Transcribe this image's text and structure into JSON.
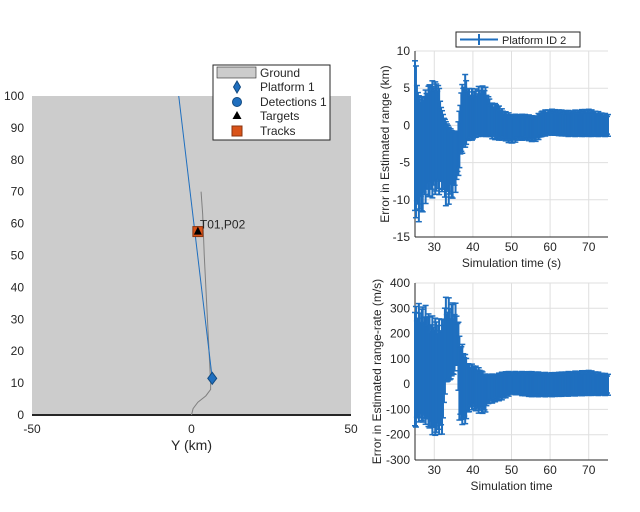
{
  "colors": {
    "ground": "#cccccc",
    "platform": "#1f6fbf",
    "track": "#d95319",
    "errorbar": "#1f6fbf",
    "truth": "#808080"
  },
  "chart_data": [
    {
      "type": "scatter",
      "title": "",
      "xlabel": "Y (km)",
      "ylabel": "",
      "xlim": [
        -50,
        50
      ],
      "ylim": [
        0,
        100
      ],
      "xticks": [
        "-50",
        "0",
        "50"
      ],
      "yticks": [
        "0",
        "10",
        "20",
        "30",
        "40",
        "50",
        "60",
        "70",
        "80",
        "90",
        "100"
      ],
      "legend": {
        "placement": "top-right",
        "entries": [
          "Ground",
          "Platform 1",
          "Detections 1",
          "Targets",
          "Tracks"
        ]
      },
      "platform_trajectory": {
        "x": [
          -4,
          6.5
        ],
        "y": [
          100,
          11.5
        ]
      },
      "platform_position": {
        "x": 6.5,
        "y": 11.5
      },
      "target_truth": {
        "x": [
          0,
          0.5,
          2,
          4.5,
          6,
          6,
          5,
          4,
          3.5,
          3
        ],
        "y": [
          0,
          2,
          4,
          6,
          8,
          10,
          30,
          50,
          63,
          70
        ]
      },
      "target_position": {
        "x": 2,
        "y": 57.5
      },
      "track_position": {
        "x": 2,
        "y": 57.5
      },
      "track_label": "T01,P02"
    },
    {
      "type": "errorbar",
      "xlabel": "Simulation time (s)",
      "ylabel": "Error in Estimated range (km)",
      "xlim": [
        25,
        75
      ],
      "ylim": [
        -15,
        10
      ],
      "xticks": [
        "30",
        "40",
        "50",
        "60",
        "70"
      ],
      "yticks": [
        "-15",
        "-10",
        "-5",
        "0",
        "5",
        "10"
      ],
      "legend": {
        "placement": "top",
        "entries": [
          "Platform ID 2"
        ]
      },
      "t": [
        25,
        26,
        27,
        28,
        29,
        30,
        31,
        32,
        33,
        34,
        35,
        36,
        37,
        38,
        39,
        40,
        41,
        42,
        43,
        44,
        45,
        46,
        48,
        50,
        52,
        54,
        56,
        58,
        60,
        65,
        70,
        75
      ],
      "upper": [
        9.5,
        4,
        4,
        5,
        6,
        6,
        6,
        2,
        0.5,
        -0.5,
        -1,
        -1,
        5,
        7,
        5,
        5,
        5,
        5.5,
        5.5,
        4,
        3,
        3,
        2,
        1.5,
        1.5,
        1.5,
        1.2,
        2,
        2.2,
        2,
        2.2,
        1.5
      ],
      "lower": [
        -12.5,
        -13,
        -12,
        -10,
        -10,
        -9.5,
        -9.5,
        -9,
        -11,
        -10.5,
        -10,
        -8,
        -4,
        -3,
        -2,
        -2,
        -1.5,
        -1.5,
        -1.5,
        -1.5,
        -1.8,
        -2,
        -2,
        -2.5,
        -2,
        -2,
        -2.3,
        -1.5,
        -1.3,
        -1.5,
        -1.5,
        -1.5
      ]
    },
    {
      "type": "errorbar",
      "xlabel": "Simulation time",
      "ylabel": "Error in Estimated range-rate (m/s)",
      "xlim": [
        25,
        75
      ],
      "ylim": [
        -300,
        400
      ],
      "xticks": [
        "30",
        "40",
        "50",
        "60",
        "70"
      ],
      "yticks": [
        "-300",
        "-200",
        "-100",
        "0",
        "100",
        "200",
        "300",
        "400"
      ],
      "t": [
        25,
        26,
        28,
        29,
        30,
        31,
        32,
        33,
        34,
        35,
        36,
        36.5,
        37,
        38,
        39,
        40,
        42,
        43,
        44,
        46,
        48,
        50,
        55,
        60,
        70,
        75
      ],
      "upper": [
        310,
        320,
        310,
        270,
        270,
        260,
        260,
        350,
        340,
        330,
        310,
        200,
        170,
        120,
        80,
        80,
        60,
        40,
        40,
        40,
        50,
        50,
        50,
        45,
        55,
        40
      ],
      "lower": [
        -180,
        -150,
        -160,
        -190,
        -210,
        -200,
        -200,
        10,
        20,
        50,
        100,
        -150,
        -160,
        -160,
        -110,
        -100,
        -120,
        -120,
        -80,
        -70,
        -60,
        -40,
        -50,
        -50,
        -45,
        -45
      ]
    }
  ]
}
